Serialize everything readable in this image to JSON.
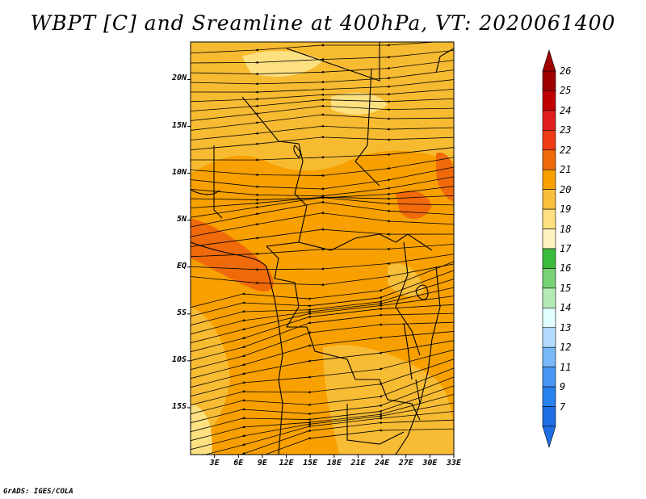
{
  "title": "WBPT [C] and Sreamline at 400hPa, VT: 2020061400",
  "credit": "GrADS: IGES/COLA",
  "map": {
    "lat_range": [
      -20,
      24
    ],
    "lon_range": [
      0,
      33
    ],
    "lat_ticks": [
      {
        "value": 20,
        "label": "20N"
      },
      {
        "value": 15,
        "label": "15N"
      },
      {
        "value": 10,
        "label": "10N"
      },
      {
        "value": 5,
        "label": "5N"
      },
      {
        "value": 0,
        "label": "EQ"
      },
      {
        "value": -5,
        "label": "5S"
      },
      {
        "value": -10,
        "label": "10S"
      },
      {
        "value": -15,
        "label": "15S"
      }
    ],
    "lon_ticks": [
      {
        "value": 3,
        "label": "3E"
      },
      {
        "value": 6,
        "label": "6E"
      },
      {
        "value": 9,
        "label": "9E"
      },
      {
        "value": 12,
        "label": "12E"
      },
      {
        "value": 15,
        "label": "15E"
      },
      {
        "value": 18,
        "label": "18E"
      },
      {
        "value": 21,
        "label": "21E"
      },
      {
        "value": 24,
        "label": "24E"
      },
      {
        "value": 27,
        "label": "27E"
      },
      {
        "value": 30,
        "label": "30E"
      },
      {
        "value": 33,
        "label": "33E"
      }
    ]
  },
  "colorbar": {
    "labels": [
      "26",
      "25",
      "24",
      "23",
      "22",
      "21",
      "20",
      "19",
      "18",
      "17",
      "16",
      "15",
      "14",
      "13",
      "12",
      "11",
      "9",
      "7"
    ],
    "colors": [
      "#a00000",
      "#c00000",
      "#e01e1e",
      "#f03c14",
      "#f06a0a",
      "#f7a000",
      "#f7bf3a",
      "#fde080",
      "#fdf3c0",
      "#3cbc3c",
      "#78d278",
      "#b4eab4",
      "#e1ffff",
      "#b4dcff",
      "#78b9fa",
      "#4696f5",
      "#2882f0",
      "#1e6ee6"
    ],
    "arrow_top_color": "#a00000",
    "arrow_bottom_color": "#1e6ee6"
  }
}
